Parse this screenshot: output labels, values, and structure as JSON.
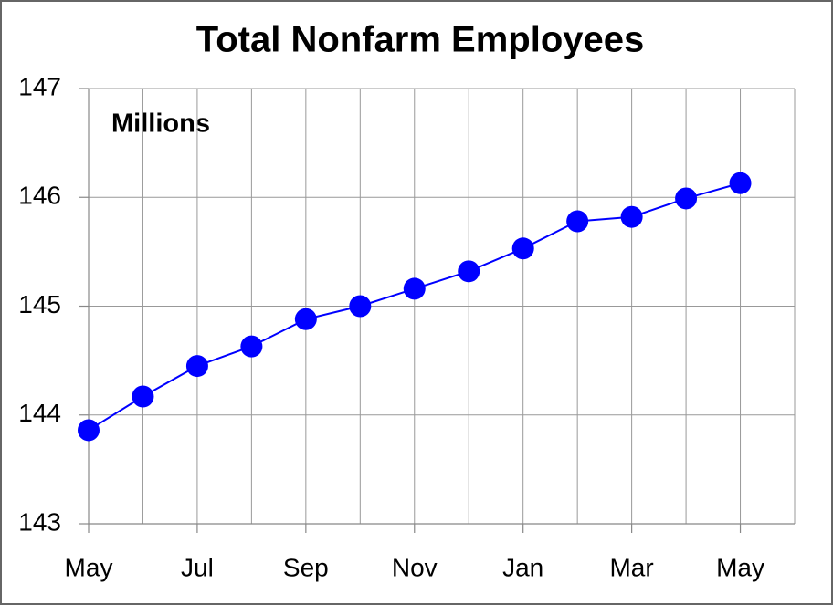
{
  "chart_data": {
    "type": "line",
    "title": "Total Nonfarm Employees",
    "annotation": "Millions",
    "categories": [
      "May",
      null,
      "Jul",
      null,
      "Sep",
      null,
      "Nov",
      null,
      "Jan",
      null,
      "Mar",
      null,
      "May"
    ],
    "series": [
      {
        "name": "Total Nonfarm Employees",
        "color": "#0000ff",
        "values": [
          143.86,
          144.17,
          144.45,
          144.63,
          144.88,
          145.0,
          145.16,
          145.32,
          145.53,
          145.78,
          145.82,
          145.99,
          146.13
        ]
      }
    ],
    "ylim": [
      143,
      147
    ],
    "yticks": [
      143,
      144,
      145,
      146,
      147
    ],
    "grid": true
  }
}
